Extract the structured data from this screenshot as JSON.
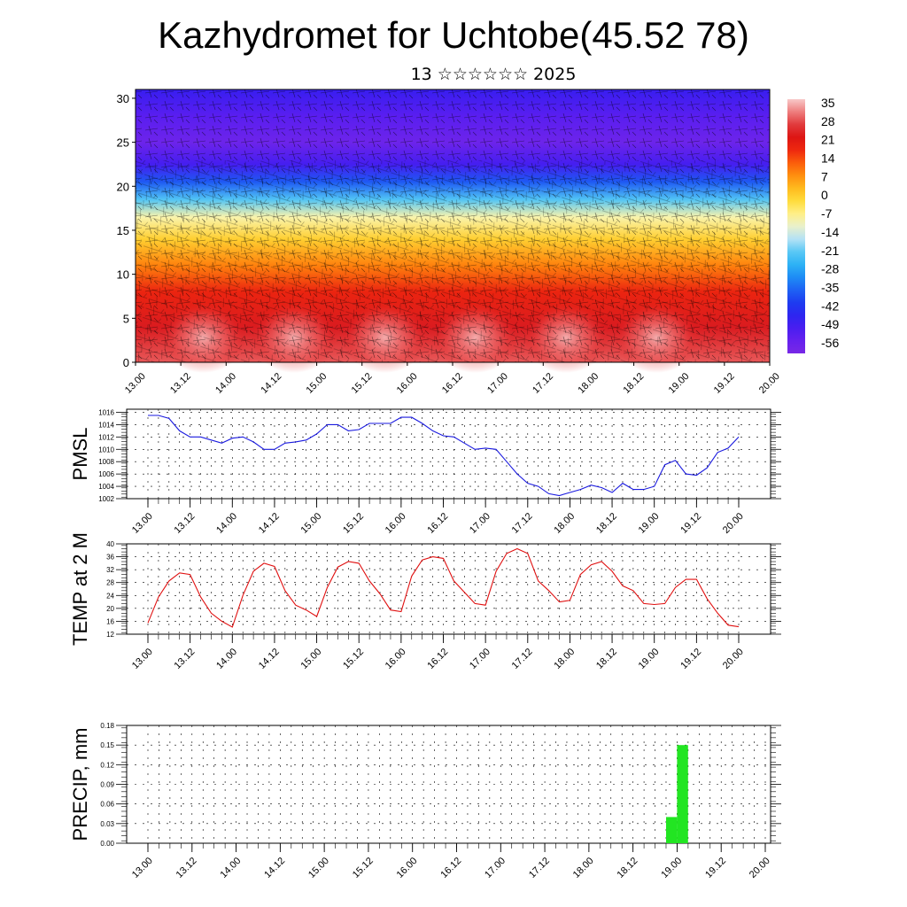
{
  "title": "Kazhydromet for Uchtobe(45.52 78)",
  "subtitle": "13 ☆☆☆☆☆☆ 2025",
  "colors": {
    "pmsl_line": "#1a1adf",
    "temp_line": "#e01010",
    "precip_bar": "#22e522"
  },
  "chart_data": [
    {
      "type": "heatmap",
      "title": "",
      "x_tick_labels": [
        "13.00",
        "13.12",
        "14.00",
        "14.12",
        "15.00",
        "15.12",
        "16.00",
        "16.12",
        "17.00",
        "17.12",
        "18.00",
        "18.12",
        "19.00",
        "19.12",
        "20.00"
      ],
      "y_ticks": [
        0,
        5,
        10,
        15,
        20,
        25,
        30
      ],
      "ylim": [
        0,
        31
      ],
      "colorbar": {
        "labels": [
          "35",
          "28",
          "21",
          "14",
          "7",
          "0",
          "-7",
          "-14",
          "-21",
          "-28",
          "-35",
          "-42",
          "-49",
          "-56"
        ],
        "range": [
          -63,
          42
        ]
      },
      "bands": [
        {
          "y": 0,
          "value": 34
        },
        {
          "y": 4,
          "value": 29
        },
        {
          "y": 8,
          "value": 22
        },
        {
          "y": 11,
          "value": 12
        },
        {
          "y": 14,
          "value": 2
        },
        {
          "y": 16.5,
          "value": -8
        },
        {
          "y": 18.5,
          "value": -22
        },
        {
          "y": 20.5,
          "value": -38
        },
        {
          "y": 22.5,
          "value": -52
        },
        {
          "y": 25,
          "value": -60
        },
        {
          "y": 28,
          "value": -55
        },
        {
          "y": 31,
          "value": -50
        }
      ],
      "warm_spots_x": [
        1.5,
        3.5,
        5.5,
        7.5,
        9.5,
        11.5
      ]
    },
    {
      "type": "line",
      "ylabel": "PMSL",
      "x_tick_labels": [
        "13.00",
        "13.12",
        "14.00",
        "14.12",
        "15.00",
        "15.12",
        "16.00",
        "16.12",
        "17.00",
        "17.12",
        "18.00",
        "18.12",
        "19.00",
        "19.12",
        "20.00"
      ],
      "y_ticks": [
        1002,
        1004,
        1006,
        1008,
        1010,
        1012,
        1014,
        1016
      ],
      "ylim": [
        1002,
        1016.5
      ],
      "series": [
        {
          "values": [
            1015.5,
            1015.5,
            1015,
            1013,
            1012,
            1012,
            1011.5,
            1011,
            1011.8,
            1012,
            1011.2,
            1010,
            1010,
            1011,
            1011.2,
            1011.5,
            1012.5,
            1014,
            1014,
            1013,
            1013.2,
            1014.2,
            1014.2,
            1014.2,
            1015.2,
            1015.2,
            1014.2,
            1013,
            1012.2,
            1012,
            1011,
            1010,
            1010.2,
            1010,
            1008,
            1006,
            1004.5,
            1004,
            1002.8,
            1002.5,
            1003,
            1003.5,
            1004.2,
            1003.8,
            1003,
            1004.5,
            1003.5,
            1003.5,
            1004,
            1007.5,
            1008.2,
            1006,
            1005.8,
            1007,
            1009.5,
            1010.2,
            1012
          ]
        }
      ]
    },
    {
      "type": "line",
      "ylabel": "TEMP at 2 M",
      "x_tick_labels": [
        "13.00",
        "13.12",
        "14.00",
        "14.12",
        "15.00",
        "15.12",
        "16.00",
        "16.12",
        "17.00",
        "17.12",
        "18.00",
        "18.12",
        "19.00",
        "19.12",
        "20.00"
      ],
      "y_ticks": [
        12,
        16,
        20,
        24,
        28,
        32,
        36,
        40
      ],
      "ylim": [
        12,
        40
      ],
      "series": [
        {
          "values": [
            15.5,
            23.5,
            28.5,
            31,
            30.5,
            23.5,
            18.5,
            16,
            14.2,
            24,
            31.5,
            34,
            33,
            25.5,
            21,
            19.5,
            17.5,
            26.5,
            32.8,
            34.5,
            34,
            28.5,
            24.5,
            19.5,
            19,
            30,
            35,
            36,
            35.5,
            28.5,
            25,
            21.5,
            21,
            31.5,
            37,
            38.5,
            37,
            28.5,
            25.5,
            22,
            22.5,
            30.5,
            33.5,
            34.5,
            31.5,
            27,
            25.5,
            21.5,
            21.2,
            21.5,
            26.5,
            29,
            29,
            23,
            18.5,
            14.8,
            14.3
          ]
        }
      ]
    },
    {
      "type": "bar",
      "ylabel": "PRECIP, mm",
      "x_tick_labels": [
        "13.00",
        "13.12",
        "14.00",
        "14.12",
        "15.00",
        "15.12",
        "16.00",
        "16.12",
        "17.00",
        "17.12",
        "18.00",
        "18.12",
        "19.00",
        "19.12",
        "20.00"
      ],
      "y_ticks": [
        "0.00",
        "0.03",
        "0.06",
        "0.09",
        "0.12",
        "0.15",
        "0.18"
      ],
      "ylim": [
        0,
        0.18
      ],
      "bars": [
        {
          "x_step": 47.5,
          "value": 0.04
        },
        {
          "x_step": 48.5,
          "value": 0.15
        }
      ],
      "x_steps_total": 56
    }
  ]
}
